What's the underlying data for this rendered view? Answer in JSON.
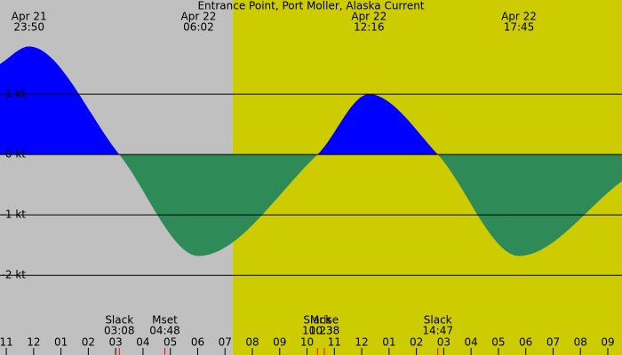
{
  "chart_data": {
    "type": "area",
    "title": "Entrance Point, Port Moller, Alaska Current",
    "x": [
      22.77,
      23.833,
      27.133,
      30.033,
      34.383,
      36.267,
      38.783,
      41.75,
      45.52
    ],
    "series": [
      {
        "color": "#0000ff",
        "negative_color": "#2e8b57",
        "values": [
          1.5,
          1.79,
          0,
          -1.68,
          0,
          1.0,
          0,
          -1.68,
          -0.44
        ]
      }
    ],
    "xlim": [
      22.77,
      45.52
    ],
    "ylim": [
      -3.32,
      2.56
    ],
    "yticks": [
      {
        "value": 1,
        "label": "1 kt"
      },
      {
        "value": 0,
        "label": "0 kt"
      },
      {
        "value": -1,
        "label": "-1 kt"
      },
      {
        "value": -2,
        "label": "-2 kt"
      }
    ],
    "xticks": [
      {
        "value": 23,
        "label": "11"
      },
      {
        "value": 24,
        "label": "12"
      },
      {
        "value": 25,
        "label": "01"
      },
      {
        "value": 26,
        "label": "02"
      },
      {
        "value": 27,
        "label": "03"
      },
      {
        "value": 28,
        "label": "04"
      },
      {
        "value": 29,
        "label": "05"
      },
      {
        "value": 30,
        "label": "06"
      },
      {
        "value": 31,
        "label": "07"
      },
      {
        "value": 32,
        "label": "08"
      },
      {
        "value": 33,
        "label": "09"
      },
      {
        "value": 34,
        "label": "10"
      },
      {
        "value": 35,
        "label": "11"
      },
      {
        "value": 36,
        "label": "12"
      },
      {
        "value": 37,
        "label": "01"
      },
      {
        "value": 38,
        "label": "02"
      },
      {
        "value": 39,
        "label": "03"
      },
      {
        "value": 40,
        "label": "04"
      },
      {
        "value": 41,
        "label": "05"
      },
      {
        "value": 42,
        "label": "06"
      },
      {
        "value": 43,
        "label": "07"
      },
      {
        "value": 44,
        "label": "08"
      },
      {
        "value": 45,
        "label": "09"
      }
    ],
    "shading": [
      {
        "color": "#c0c0c0",
        "x": [
          22.77,
          31.28
        ]
      },
      {
        "color": "#cccc00",
        "x": [
          31.28,
          45.52
        ]
      }
    ],
    "top_events": [
      {
        "label": "Apr 21",
        "time": "23:50",
        "x": 23.833
      },
      {
        "label": "Apr 22",
        "time": "06:02",
        "x": 30.033
      },
      {
        "label": "Apr 22",
        "time": "12:16",
        "x": 36.267
      },
      {
        "label": "Apr 22",
        "time": "17:45",
        "x": 41.75
      }
    ],
    "bottom_events": [
      {
        "label": "Slack",
        "time": "03:08",
        "x": 27.133
      },
      {
        "label": "Mset",
        "time": "04:48",
        "x": 28.8
      },
      {
        "label": "Slack",
        "time": "10:23",
        "x": 34.383
      },
      {
        "label": "Mrise",
        "time": "10:38",
        "x": 34.633
      },
      {
        "label": "Slack",
        "time": "14:47",
        "x": 38.783
      }
    ],
    "event_tick_color": "#ff0000"
  }
}
